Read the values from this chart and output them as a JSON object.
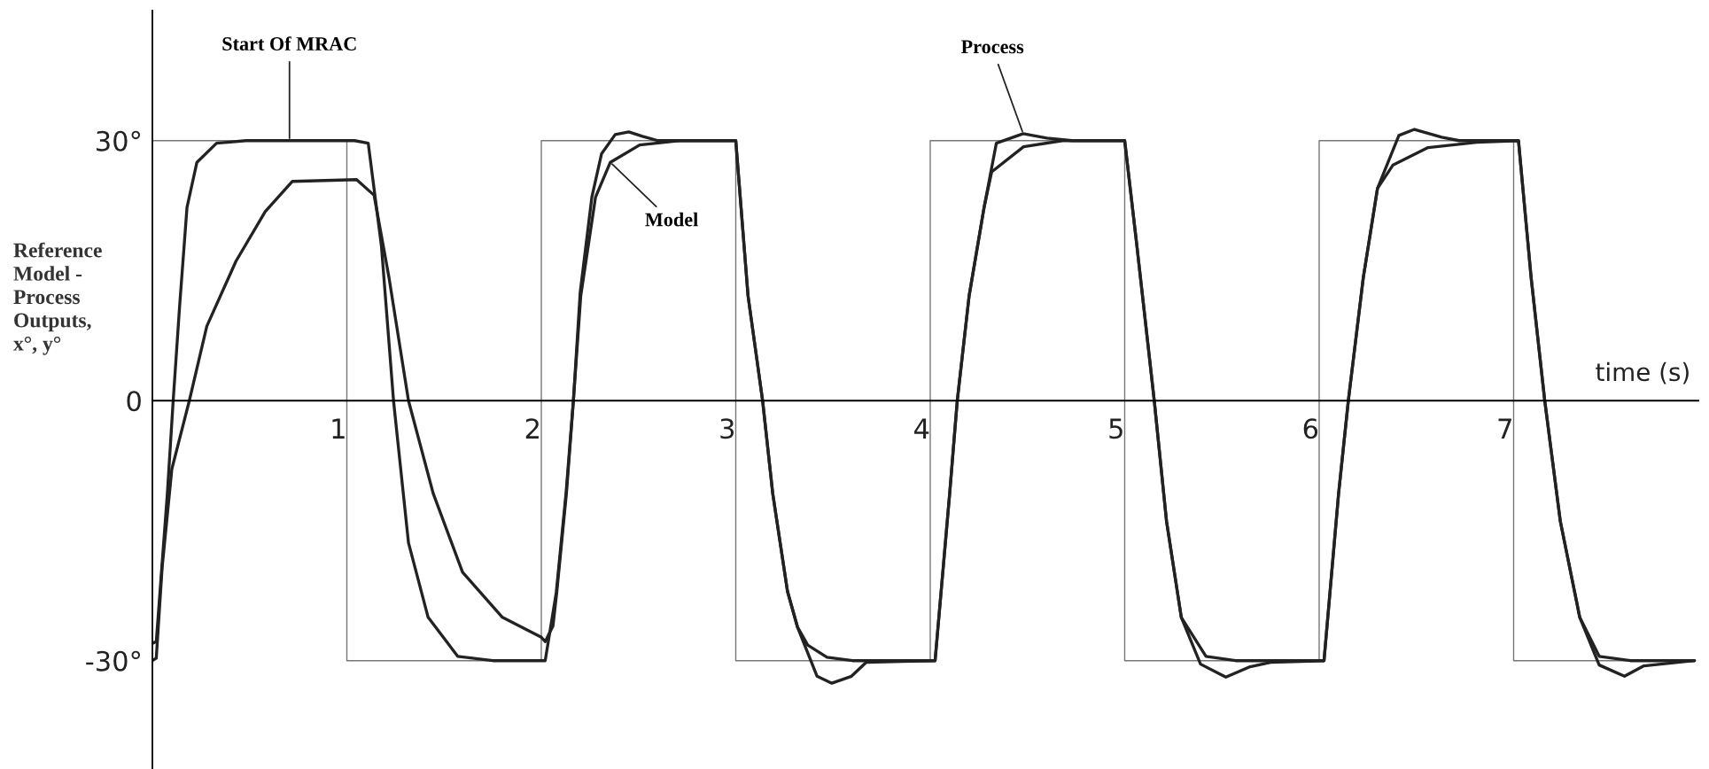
{
  "chart_data": {
    "type": "line",
    "xlabel": "time (s)",
    "ylabel": "Reference\nModel -\nProcess\nOutputs,\nx°, y°",
    "xlim": [
      0,
      7.95
    ],
    "ylim": [
      -42.5,
      45
    ],
    "xticks": [
      1,
      2,
      3,
      4,
      5,
      6,
      7
    ],
    "yticks": [
      {
        "value": -30,
        "label": "-30°"
      },
      0,
      {
        "value": 30,
        "label": "30°"
      }
    ],
    "grid": false,
    "marker": "none",
    "line_style": "solid",
    "series": [
      {
        "type": "step",
        "color": "#777777",
        "x": [
          0,
          1,
          2,
          3,
          4,
          5,
          6,
          7,
          7.93
        ],
        "values": [
          30,
          -30,
          30,
          -30,
          30,
          -30,
          30,
          -30,
          -30
        ]
      },
      {
        "color": "#222222",
        "x": [
          0,
          0.02,
          0.077,
          0.107,
          0.14,
          0.178,
          0.229,
          0.33,
          0.48,
          1.04,
          1.11,
          1.178,
          1.24,
          1.317,
          1.418,
          1.57,
          1.75,
          2.02,
          2.077,
          2.127,
          2.165,
          2.203,
          2.279,
          2.355,
          2.506,
          2.71,
          3.0,
          3.063,
          3.138,
          3.19,
          3.266,
          3.317,
          3.37,
          3.469,
          3.6,
          4.025,
          4.1,
          4.139,
          4.2,
          4.277,
          4.316,
          4.48,
          4.68,
          5.0,
          5.063,
          5.152,
          5.215,
          5.291,
          5.418,
          5.57,
          6.025,
          6.1,
          6.15,
          6.227,
          6.3,
          6.38,
          6.56,
          6.81,
          7.025,
          7.09,
          7.16,
          7.24,
          7.34,
          7.44,
          7.6,
          7.93
        ],
        "values": [
          -28,
          -27.8,
          -10.7,
          0,
          10.9,
          22.3,
          27.5,
          29.7,
          30,
          30,
          29.7,
          17.8,
          0,
          -16.4,
          -25,
          -29.5,
          -30,
          -30,
          -22.1,
          -10.7,
          0,
          12.1,
          23.5,
          27.5,
          29.5,
          30,
          30,
          12.1,
          0,
          -10.7,
          -22,
          -26.1,
          -28.2,
          -29.6,
          -30,
          -30,
          -10.7,
          0,
          12.1,
          22.3,
          26.4,
          29.3,
          30,
          30,
          17.8,
          0,
          -13.9,
          -25,
          -29.5,
          -30,
          -30,
          -10.7,
          0,
          14.2,
          24.5,
          27.2,
          29.2,
          29.8,
          30,
          14.2,
          0,
          -13.9,
          -25,
          -29.5,
          -30,
          -30
        ]
      },
      {
        "color": "#222222",
        "x": [
          0,
          0.02,
          0.05,
          0.1,
          0.19,
          0.28,
          0.43,
          0.58,
          0.72,
          1.05,
          1.14,
          1.216,
          1.317,
          1.444,
          1.595,
          1.8,
          2.0,
          2.02,
          2.06,
          2.08,
          2.13,
          2.165,
          2.2,
          2.26,
          2.31,
          2.38,
          2.45,
          2.52,
          2.6,
          3.0,
          3.063,
          3.138,
          3.19,
          3.266,
          3.317,
          3.418,
          3.494,
          3.595,
          3.67,
          4.025,
          4.1,
          4.139,
          4.2,
          4.277,
          4.34,
          4.478,
          4.6,
          4.73,
          5.0,
          5.063,
          5.152,
          5.215,
          5.291,
          5.39,
          5.52,
          5.645,
          5.75,
          6.025,
          6.1,
          6.15,
          6.227,
          6.3,
          6.41,
          6.49,
          6.63,
          6.72,
          7.025,
          7.09,
          7.16,
          7.24,
          7.34,
          7.44,
          7.57,
          7.67,
          7.93
        ],
        "values": [
          -30,
          -29.7,
          -19.3,
          -7.9,
          0,
          8.6,
          16.1,
          21.8,
          25.3,
          25.5,
          23.7,
          14.3,
          0,
          -10.7,
          -19.8,
          -25,
          -27.3,
          -27.8,
          -26,
          -22,
          -10.5,
          0,
          12.5,
          23.5,
          28.5,
          30.7,
          31,
          30.5,
          30,
          30,
          12.1,
          0,
          -10.7,
          -22,
          -26.1,
          -31.8,
          -32.6,
          -31.8,
          -30.2,
          -30,
          -10.7,
          0,
          12.1,
          22.3,
          29.7,
          30.8,
          30.3,
          30,
          30,
          17.8,
          0,
          -13.9,
          -25,
          -30.4,
          -31.9,
          -30.7,
          -30.2,
          -30,
          -10.7,
          0,
          14.2,
          24.5,
          30.6,
          31.3,
          30.4,
          30,
          30,
          14.2,
          0,
          -13.9,
          -25,
          -30.5,
          -31.8,
          -30.6,
          -30
        ]
      }
    ],
    "annotations": [
      {
        "text": "Start Of MRAC",
        "x": 0.705,
        "y": 30
      },
      {
        "text": "Model",
        "x": 2.355,
        "y": 27.5
      },
      {
        "text": "Process",
        "x": 4.478,
        "y": 30.8
      }
    ]
  }
}
